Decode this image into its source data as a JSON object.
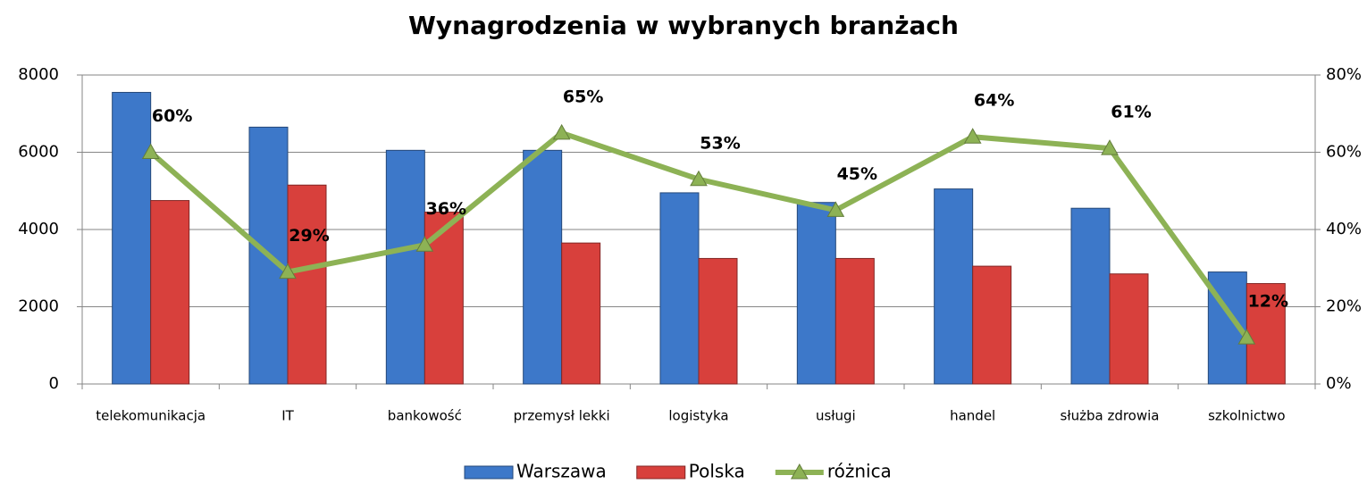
{
  "chart_data": {
    "type": "bar",
    "title": "Wynagrodzenia w wybranych branżach",
    "categories": [
      "telekomunikacja",
      "IT",
      "bankowość",
      "przemysł lekki",
      "logistyka",
      "usługi",
      "handel",
      "służba zdrowia",
      "szkolnictwo"
    ],
    "series": [
      {
        "name": "Warszawa",
        "color": "#3d78c9",
        "values": [
          7550,
          6650,
          6050,
          6050,
          4950,
          4700,
          5050,
          4550,
          2900
        ]
      },
      {
        "name": "Polska",
        "color": "#d8403c",
        "values": [
          4750,
          5150,
          4450,
          3650,
          3250,
          3250,
          3050,
          2850,
          2600
        ]
      },
      {
        "name": "różnica",
        "color": "#8db255",
        "type": "line",
        "axis": "y2",
        "values": [
          60,
          29,
          36,
          65,
          53,
          45,
          64,
          61,
          12
        ],
        "value_labels": [
          "60%",
          "29%",
          "36%",
          "65%",
          "53%",
          "45%",
          "64%",
          "61%",
          "12%"
        ]
      }
    ],
    "ylim": [
      0,
      8000
    ],
    "yticks": [
      0,
      2000,
      4000,
      6000,
      8000
    ],
    "y2lim": [
      0,
      80
    ],
    "y2ticks": [
      {
        "value": 0,
        "label": "0%"
      },
      {
        "value": 20,
        "label": "20%"
      },
      {
        "value": 40,
        "label": "40%"
      },
      {
        "value": 60,
        "label": "60%"
      },
      {
        "value": 80,
        "label": "80%"
      }
    ],
    "grid": true,
    "legend": "bottom"
  }
}
